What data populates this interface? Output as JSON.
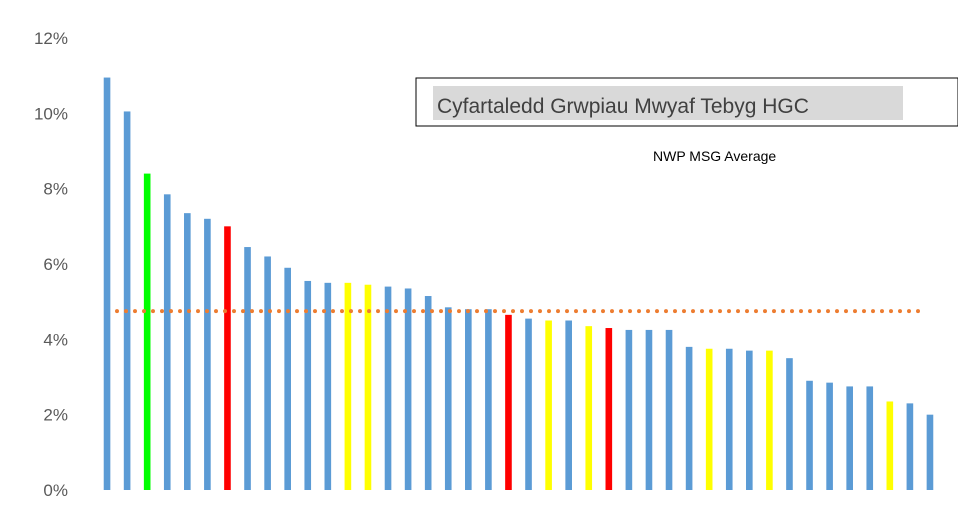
{
  "chart_data": {
    "type": "bar",
    "title": "Cyfartaledd Grwpiau Mwyaf Tebyg HGC",
    "ylim": [
      0,
      12
    ],
    "yticks": [
      "0%",
      "2%",
      "4%",
      "6%",
      "8%",
      "10%",
      "12%"
    ],
    "ytick_values": [
      0,
      2,
      4,
      6,
      8,
      10,
      12
    ],
    "grid": false,
    "legend": "top-right",
    "average_line": {
      "label": "NWP MSG Average",
      "value": 4.75,
      "color": "#ed7d31"
    },
    "colors": {
      "blue": "#5b9bd5",
      "green": "#00ff00",
      "red": "#ff0000",
      "yellow": "#ffff00"
    },
    "values": [
      10.95,
      10.05,
      8.4,
      7.85,
      7.35,
      7.2,
      7.0,
      6.45,
      6.2,
      5.9,
      5.55,
      5.5,
      5.5,
      5.45,
      5.4,
      5.35,
      5.15,
      4.85,
      4.8,
      4.8,
      4.65,
      4.55,
      4.5,
      4.5,
      4.35,
      4.3,
      4.25,
      4.25,
      4.25,
      3.8,
      3.75,
      3.75,
      3.7,
      3.7,
      3.5,
      2.9,
      2.85,
      2.75,
      2.75,
      2.35,
      2.3,
      2.0
    ],
    "bar_colors": [
      "blue",
      "blue",
      "green",
      "blue",
      "blue",
      "blue",
      "red",
      "blue",
      "blue",
      "blue",
      "blue",
      "blue",
      "yellow",
      "yellow",
      "blue",
      "blue",
      "blue",
      "blue",
      "blue",
      "blue",
      "red",
      "blue",
      "yellow",
      "blue",
      "yellow",
      "red",
      "blue",
      "blue",
      "blue",
      "blue",
      "yellow",
      "blue",
      "blue",
      "yellow",
      "blue",
      "blue",
      "blue",
      "blue",
      "blue",
      "yellow",
      "blue",
      "blue"
    ]
  }
}
